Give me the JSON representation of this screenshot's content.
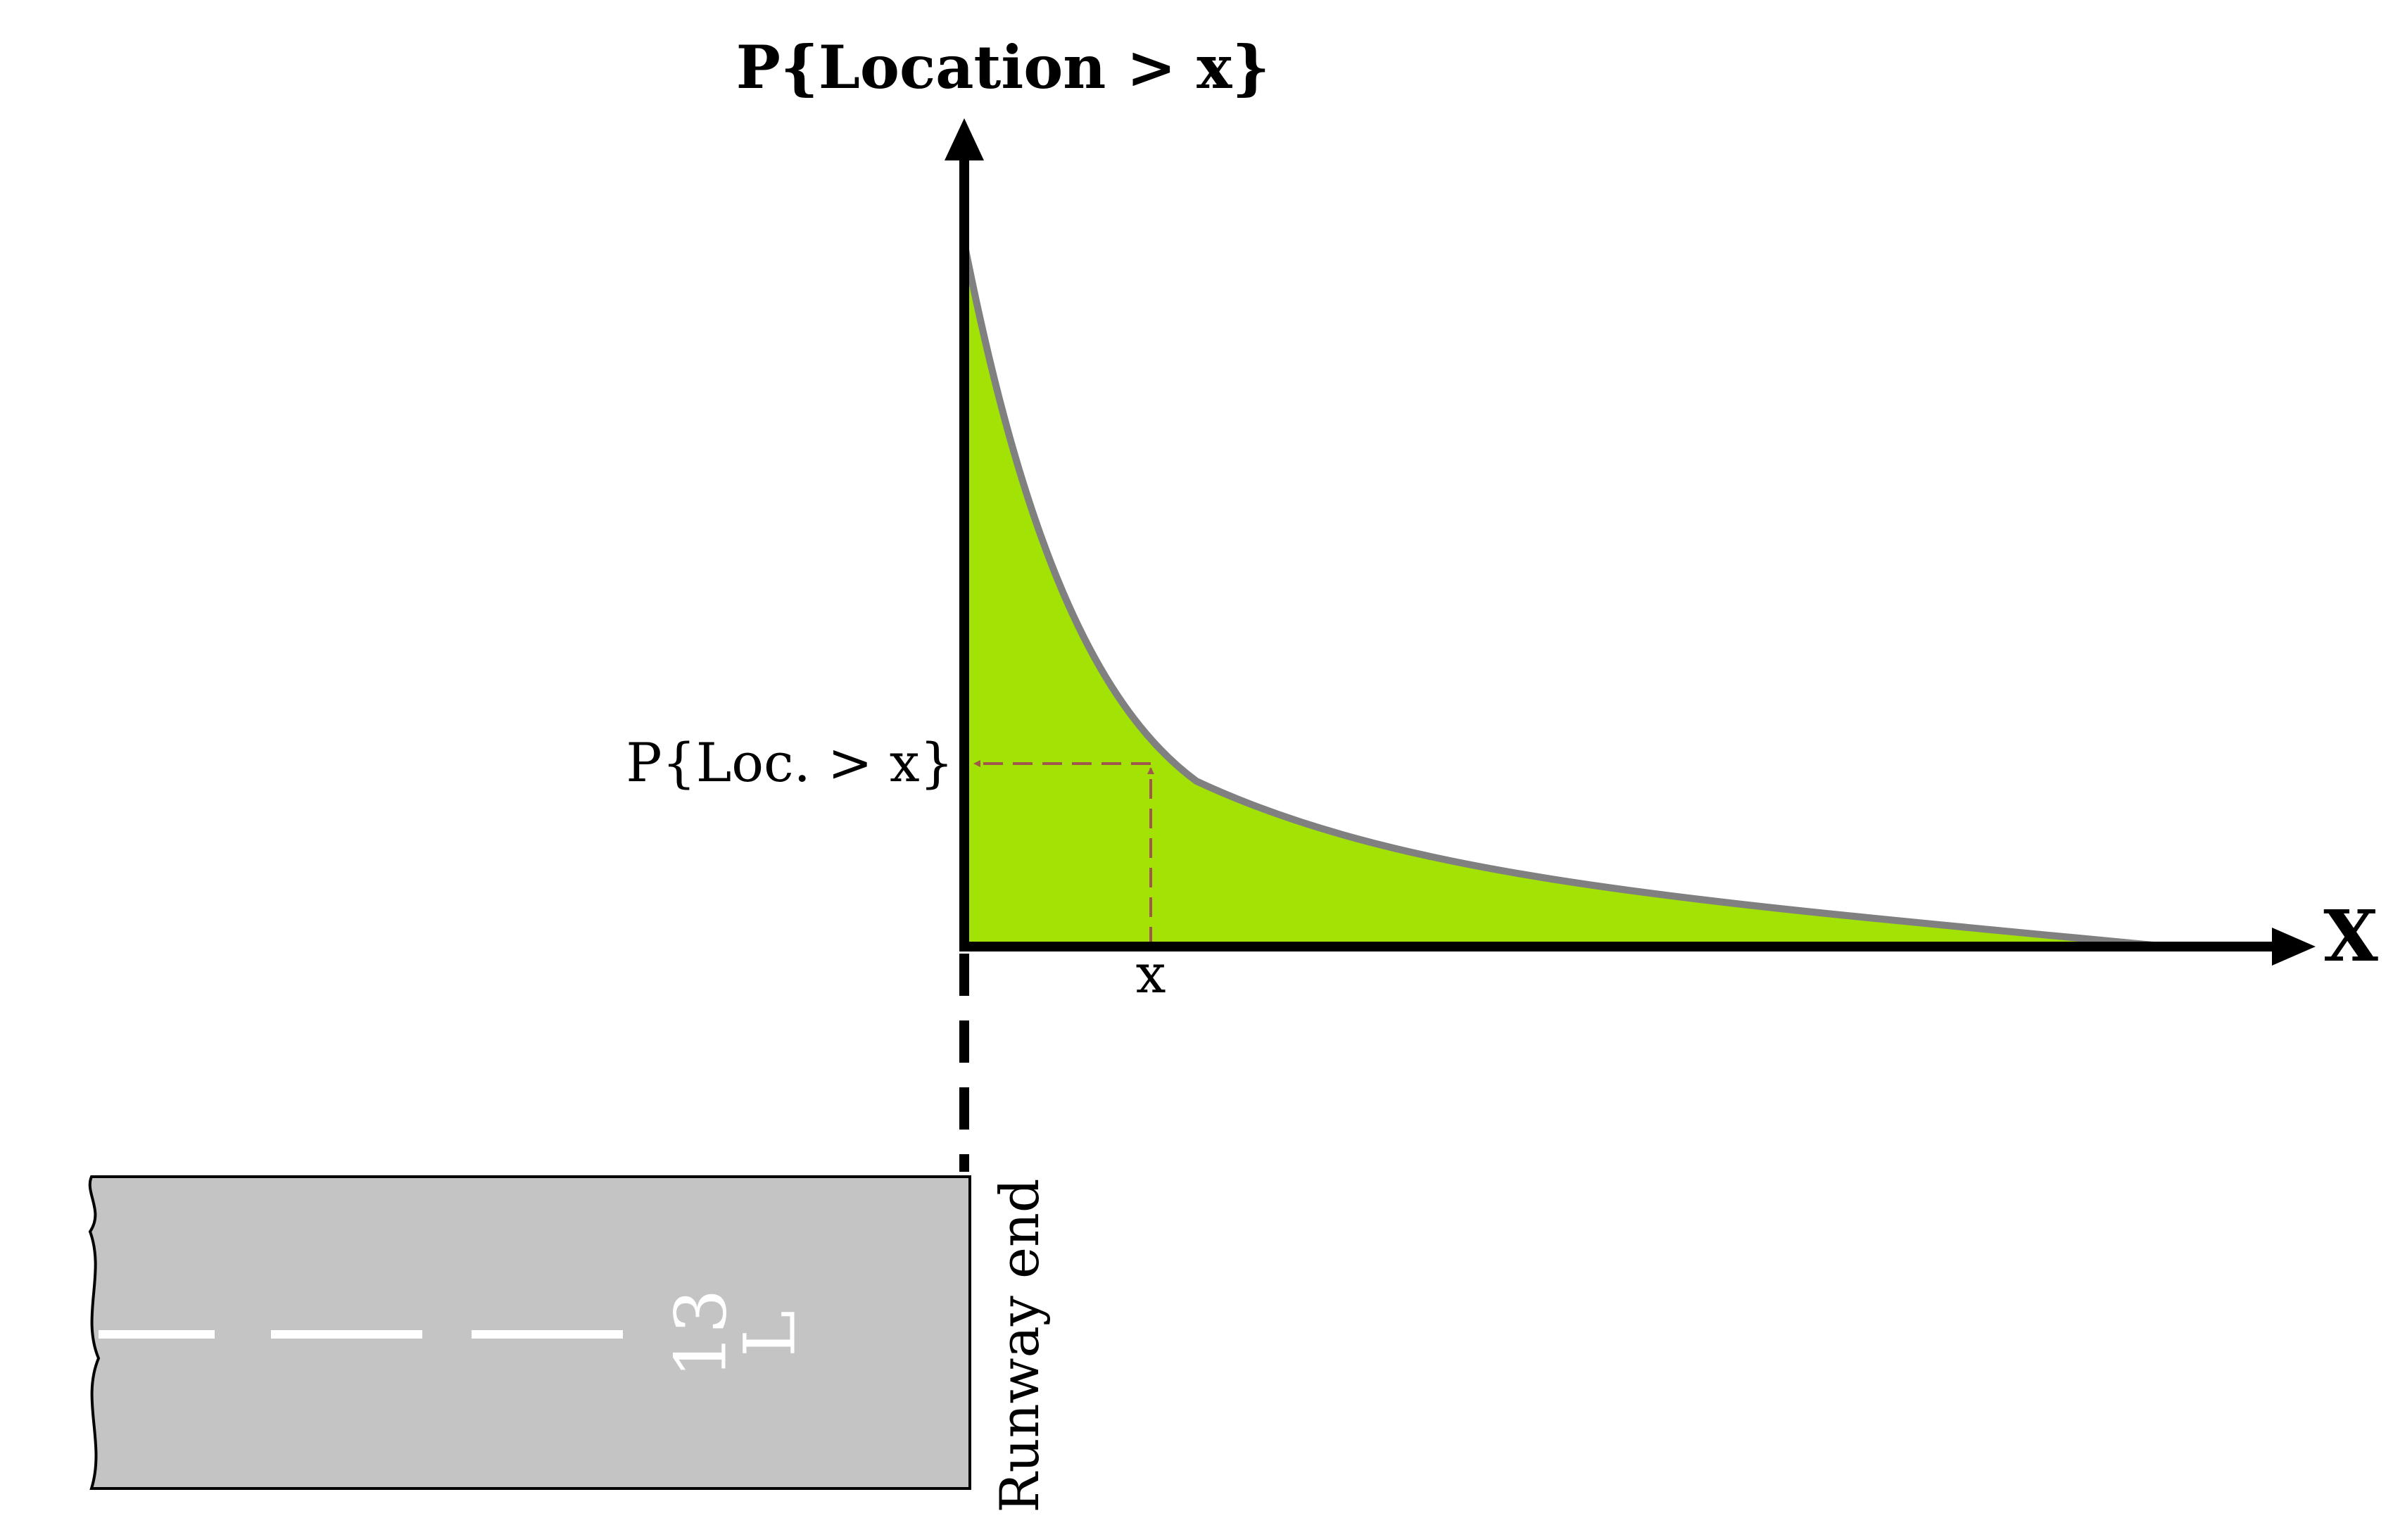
{
  "diagram": {
    "y_axis_label": "P{Location > x}",
    "x_axis_label": "X",
    "marker_y_label": "P{Loc. > x}",
    "marker_x_label": "x",
    "runway_end_label": "Runway end",
    "runway_number": "13",
    "runway_letter": "L"
  },
  "colors": {
    "fill": "#a2e205",
    "curve": "#808080",
    "axes": "#000000",
    "guide": "#a0584c",
    "runway": "#c4c4c4",
    "runway_marking": "#ffffff"
  }
}
